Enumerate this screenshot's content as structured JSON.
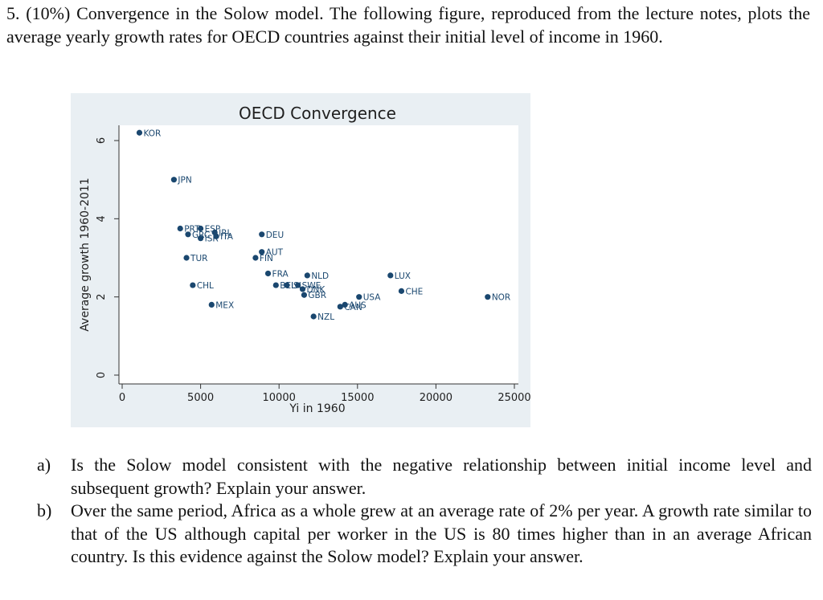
{
  "problem": {
    "text": "5. (10%) Convergence in the Solow model. The following figure, reproduced from the lecture notes, plots the average yearly growth rates for OECD countries against their initial level of income in 1960."
  },
  "chart_data": {
    "type": "scatter",
    "title": "OECD Convergence",
    "xlabel": "Yi in 1960",
    "ylabel": "Average growth 1960-2011",
    "xlim": [
      0,
      25000
    ],
    "ylim": [
      0,
      6
    ],
    "xticks": [
      "0",
      "5000",
      "10000",
      "15000",
      "20000",
      "25000"
    ],
    "yticks": [
      "0",
      "2",
      "4",
      "6"
    ],
    "grid": false,
    "marker_color": "#1a476f",
    "points": [
      {
        "label": "KOR",
        "x": 1100,
        "y": 6.2
      },
      {
        "label": "JPN",
        "x": 3300,
        "y": 5.0
      },
      {
        "label": "PRT",
        "x": 3700,
        "y": 3.75
      },
      {
        "label": "GRC",
        "x": 4200,
        "y": 3.6
      },
      {
        "label": "ESP",
        "x": 5000,
        "y": 3.75
      },
      {
        "label": "ISR",
        "x": 5000,
        "y": 3.5
      },
      {
        "label": "IRL",
        "x": 5900,
        "y": 3.65
      },
      {
        "label": "ITA",
        "x": 6000,
        "y": 3.55
      },
      {
        "label": "TUR",
        "x": 4100,
        "y": 3.0
      },
      {
        "label": "CHL",
        "x": 4500,
        "y": 2.3
      },
      {
        "label": "MEX",
        "x": 5700,
        "y": 1.8
      },
      {
        "label": "DEU",
        "x": 8900,
        "y": 3.6
      },
      {
        "label": "AUT",
        "x": 8900,
        "y": 3.15
      },
      {
        "label": "FIN",
        "x": 8500,
        "y": 3.0
      },
      {
        "label": "FRA",
        "x": 9300,
        "y": 2.6
      },
      {
        "label": "BEL",
        "x": 9800,
        "y": 2.3
      },
      {
        "label": "ISL",
        "x": 10500,
        "y": 2.3
      },
      {
        "label": "SWE",
        "x": 11200,
        "y": 2.3
      },
      {
        "label": "DNK",
        "x": 11500,
        "y": 2.2
      },
      {
        "label": "NLD",
        "x": 11800,
        "y": 2.55
      },
      {
        "label": "GBR",
        "x": 11600,
        "y": 2.05
      },
      {
        "label": "NZL",
        "x": 12200,
        "y": 1.5
      },
      {
        "label": "USA",
        "x": 15100,
        "y": 2.0
      },
      {
        "label": "CAN",
        "x": 13900,
        "y": 1.75
      },
      {
        "label": "AUS",
        "x": 14200,
        "y": 1.8
      },
      {
        "label": "LUX",
        "x": 17100,
        "y": 2.55
      },
      {
        "label": "CHE",
        "x": 17800,
        "y": 2.15
      },
      {
        "label": "NOR",
        "x": 23300,
        "y": 2.0
      }
    ]
  },
  "questions": [
    {
      "label": "a)",
      "text": "Is the Solow model consistent with the negative relationship between initial income level and subsequent growth? Explain your answer."
    },
    {
      "label": "b)",
      "text": "Over the same period, Africa as a whole grew at an average rate of 2% per year. A growth rate similar to that of the US although capital per worker in the US is 80 times higher than in an average African country. Is this evidence against the Solow model? Explain your answer."
    }
  ]
}
